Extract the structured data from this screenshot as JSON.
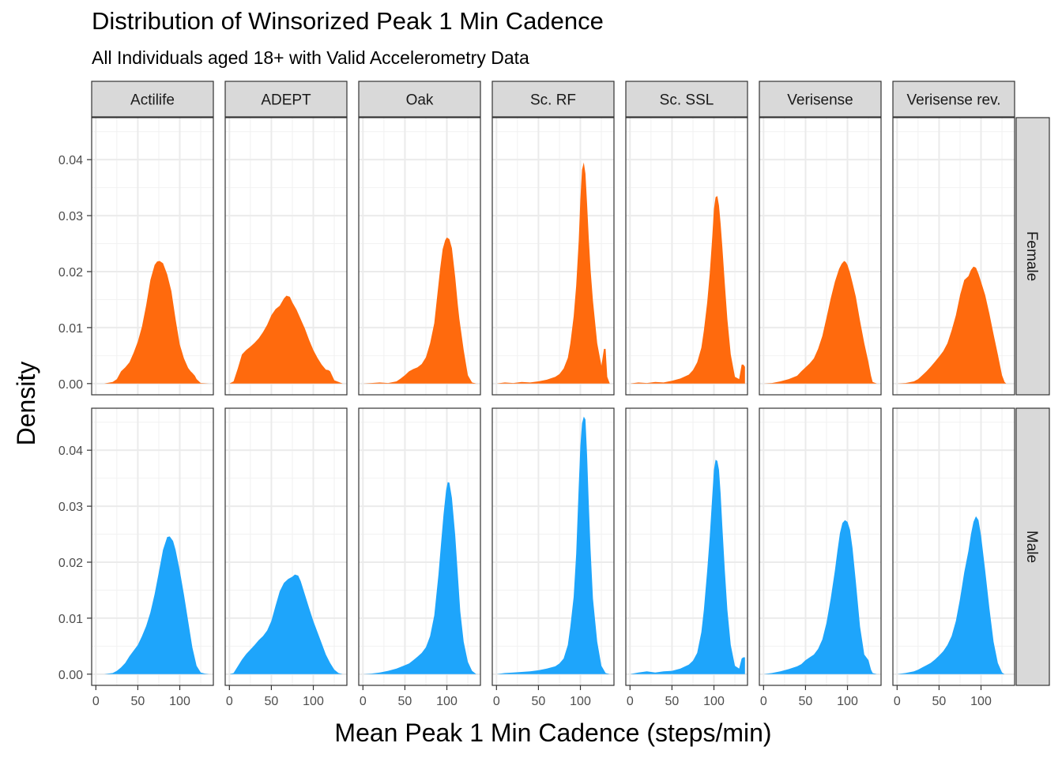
{
  "chart_data": {
    "type": "area",
    "kind": "faceted density plot",
    "title": "Distribution of Winsorized Peak 1 Min Cadence",
    "subtitle": "All Individuals aged 18+ with Valid Accelerometry Data",
    "xlabel": "Mean Peak 1 Min Cadence (steps/min)",
    "ylabel": "Density",
    "xlim": [
      -5,
      140
    ],
    "ylim": [
      -0.002,
      0.0475
    ],
    "x_ticks": [
      0,
      50,
      100
    ],
    "x_tick_labels": [
      "0",
      "50",
      "100"
    ],
    "y_ticks": [
      0,
      0.01,
      0.02,
      0.03,
      0.04
    ],
    "y_tick_labels": [
      "0.00",
      "0.01",
      "0.02",
      "0.03",
      "0.04"
    ],
    "grid": true,
    "legend": "none",
    "colors": {
      "Female": "#ff6a0d",
      "Male": "#1ea5fb"
    },
    "columns": [
      "Actilife",
      "ADEPT",
      "Oak",
      "Sc. RF",
      "Sc. SSL",
      "Verisense",
      "Verisense rev."
    ],
    "rows": [
      "Female",
      "Male"
    ],
    "panels": [
      {
        "row": "Female",
        "column": "Actilife",
        "x": [
          0,
          10,
          20,
          25,
          30,
          35,
          40,
          45,
          50,
          55,
          60,
          65,
          70,
          73,
          76,
          80,
          85,
          90,
          95,
          100,
          105,
          110,
          113,
          115,
          118,
          120,
          125,
          135
        ],
        "y": [
          0,
          0,
          0.0003,
          0.0008,
          0.0022,
          0.0029,
          0.0038,
          0.0055,
          0.0075,
          0.0102,
          0.014,
          0.0185,
          0.0212,
          0.0218,
          0.0219,
          0.0215,
          0.0195,
          0.0165,
          0.0115,
          0.007,
          0.0045,
          0.0028,
          0.0022,
          0.0019,
          0.0014,
          0.0008,
          0.0001,
          0
        ]
      },
      {
        "row": "Female",
        "column": "ADEPT",
        "x": [
          0,
          5,
          10,
          15,
          20,
          25,
          30,
          35,
          40,
          45,
          50,
          55,
          60,
          65,
          68,
          72,
          75,
          80,
          85,
          90,
          95,
          100,
          105,
          110,
          115,
          118,
          120,
          125,
          135
        ],
        "y": [
          0,
          0.0004,
          0.0027,
          0.0052,
          0.006,
          0.0066,
          0.0073,
          0.0081,
          0.0092,
          0.0105,
          0.0122,
          0.0133,
          0.0139,
          0.0152,
          0.0157,
          0.0155,
          0.0145,
          0.0132,
          0.0115,
          0.0098,
          0.0078,
          0.006,
          0.0046,
          0.0034,
          0.0025,
          0.0024,
          0.0022,
          0.0006,
          0
        ]
      },
      {
        "row": "Female",
        "column": "Oak",
        "x": [
          0,
          10,
          20,
          30,
          40,
          45,
          50,
          55,
          60,
          65,
          70,
          75,
          80,
          85,
          88,
          92,
          95,
          98,
          100,
          103,
          106,
          110,
          113,
          115,
          120,
          125,
          130,
          135
        ],
        "y": [
          0,
          0.0001,
          0.0002,
          0.0001,
          0.0004,
          0.0009,
          0.0015,
          0.0022,
          0.0026,
          0.0029,
          0.0035,
          0.0047,
          0.0072,
          0.0108,
          0.015,
          0.0205,
          0.024,
          0.0256,
          0.0261,
          0.0258,
          0.0242,
          0.019,
          0.0142,
          0.0115,
          0.006,
          0.0015,
          0.0002,
          0
        ]
      },
      {
        "row": "Female",
        "column": "Sc. RF",
        "x": [
          0,
          10,
          20,
          30,
          40,
          50,
          60,
          70,
          75,
          80,
          85,
          88,
          92,
          95,
          98,
          100,
          102,
          104,
          106,
          108,
          110,
          112,
          115,
          120,
          125,
          128,
          130,
          132,
          135
        ],
        "y": [
          0,
          0.0002,
          0.0001,
          0.0003,
          0.0002,
          0.0004,
          0.0007,
          0.0012,
          0.0017,
          0.0027,
          0.0046,
          0.0072,
          0.012,
          0.0175,
          0.0255,
          0.033,
          0.0382,
          0.0395,
          0.0375,
          0.032,
          0.026,
          0.0205,
          0.0148,
          0.0072,
          0.0032,
          0.0062,
          0.0062,
          0.0012,
          0
        ]
      },
      {
        "row": "Female",
        "column": "Sc. SSL",
        "x": [
          0,
          10,
          20,
          30,
          40,
          50,
          60,
          70,
          75,
          80,
          85,
          88,
          92,
          95,
          98,
          100,
          102,
          104,
          106,
          108,
          110,
          113,
          116,
          120,
          125,
          130,
          133,
          135,
          137
        ],
        "y": [
          0,
          0.0002,
          0.0001,
          0.0003,
          0.0002,
          0.0005,
          0.0009,
          0.0016,
          0.0024,
          0.0038,
          0.0064,
          0.0095,
          0.0145,
          0.0196,
          0.0262,
          0.0312,
          0.0333,
          0.0335,
          0.0318,
          0.0285,
          0.0245,
          0.0178,
          0.0115,
          0.0052,
          0.0012,
          0.0008,
          0.0034,
          0.0034,
          0.003
        ]
      },
      {
        "row": "Female",
        "column": "Verisense",
        "x": [
          0,
          10,
          20,
          30,
          40,
          45,
          50,
          55,
          60,
          65,
          70,
          75,
          80,
          85,
          90,
          93,
          96,
          98,
          100,
          103,
          106,
          110,
          115,
          120,
          125,
          128,
          130,
          135
        ],
        "y": [
          0,
          0.0001,
          0.0004,
          0.0008,
          0.0014,
          0.0022,
          0.0029,
          0.0036,
          0.0045,
          0.0062,
          0.0085,
          0.0118,
          0.0152,
          0.0182,
          0.0205,
          0.0214,
          0.0219,
          0.0217,
          0.0212,
          0.0198,
          0.018,
          0.0155,
          0.0112,
          0.0072,
          0.0038,
          0.0014,
          0.0003,
          0
        ]
      },
      {
        "row": "Female",
        "column": "Verisense rev.",
        "x": [
          0,
          10,
          20,
          25,
          30,
          35,
          40,
          45,
          50,
          55,
          60,
          65,
          70,
          75,
          80,
          85,
          88,
          91,
          94,
          97,
          100,
          105,
          110,
          115,
          120,
          125,
          128,
          130,
          135
        ],
        "y": [
          0,
          0.0001,
          0.0004,
          0.0008,
          0.0015,
          0.0022,
          0.003,
          0.0039,
          0.0048,
          0.0058,
          0.0072,
          0.0095,
          0.0122,
          0.0158,
          0.0185,
          0.0192,
          0.0203,
          0.0209,
          0.0207,
          0.0196,
          0.0182,
          0.0158,
          0.0125,
          0.0088,
          0.0052,
          0.0015,
          0.0003,
          0,
          0
        ]
      },
      {
        "row": "Male",
        "column": "Actilife",
        "x": [
          0,
          10,
          20,
          25,
          30,
          35,
          40,
          45,
          50,
          55,
          60,
          65,
          70,
          75,
          80,
          85,
          88,
          92,
          95,
          100,
          105,
          110,
          115,
          120,
          125,
          130,
          135
        ],
        "y": [
          0,
          0,
          0.0002,
          0.0006,
          0.0012,
          0.002,
          0.0032,
          0.0042,
          0.0052,
          0.0068,
          0.0086,
          0.011,
          0.0143,
          0.0182,
          0.0222,
          0.0245,
          0.0246,
          0.0238,
          0.0222,
          0.0185,
          0.0142,
          0.0095,
          0.0048,
          0.0015,
          0.0003,
          0.0001,
          0
        ]
      },
      {
        "row": "Male",
        "column": "ADEPT",
        "x": [
          0,
          5,
          10,
          15,
          20,
          25,
          30,
          35,
          40,
          45,
          50,
          55,
          60,
          65,
          70,
          75,
          78,
          82,
          85,
          90,
          95,
          100,
          105,
          110,
          115,
          120,
          125,
          130,
          135
        ],
        "y": [
          0,
          0.0002,
          0.0014,
          0.0026,
          0.0036,
          0.0044,
          0.0052,
          0.0061,
          0.0068,
          0.0078,
          0.0095,
          0.0122,
          0.0148,
          0.0163,
          0.017,
          0.0174,
          0.0178,
          0.0176,
          0.0166,
          0.0142,
          0.0118,
          0.0095,
          0.0075,
          0.0055,
          0.0035,
          0.002,
          0.0008,
          0.0002,
          0
        ]
      },
      {
        "row": "Male",
        "column": "Oak",
        "x": [
          0,
          10,
          20,
          30,
          40,
          45,
          50,
          55,
          60,
          65,
          70,
          75,
          80,
          85,
          90,
          93,
          96,
          99,
          101,
          103,
          106,
          110,
          113,
          116,
          120,
          125,
          130,
          135
        ],
        "y": [
          0,
          0.0001,
          0.0003,
          0.0006,
          0.001,
          0.0013,
          0.0016,
          0.0019,
          0.0025,
          0.0031,
          0.0038,
          0.0048,
          0.0068,
          0.0105,
          0.0178,
          0.0232,
          0.0285,
          0.0328,
          0.0343,
          0.0342,
          0.0315,
          0.0248,
          0.018,
          0.0112,
          0.0058,
          0.0022,
          0.0006,
          0
        ]
      },
      {
        "row": "Male",
        "column": "Sc. RF",
        "x": [
          0,
          10,
          20,
          30,
          40,
          50,
          60,
          70,
          75,
          80,
          85,
          88,
          92,
          95,
          98,
          100,
          102,
          104,
          106,
          108,
          110,
          112,
          115,
          120,
          125,
          130,
          135
        ],
        "y": [
          0,
          0.0002,
          0.0003,
          0.0004,
          0.0005,
          0.0007,
          0.001,
          0.0014,
          0.0019,
          0.0028,
          0.0052,
          0.0085,
          0.0138,
          0.0215,
          0.0335,
          0.0408,
          0.0448,
          0.046,
          0.0455,
          0.039,
          0.0305,
          0.0225,
          0.0135,
          0.0058,
          0.0015,
          0.0002,
          0
        ]
      },
      {
        "row": "Male",
        "column": "Sc. SSL",
        "x": [
          0,
          10,
          20,
          30,
          40,
          50,
          60,
          70,
          75,
          80,
          85,
          88,
          92,
          95,
          98,
          100,
          102,
          104,
          106,
          108,
          110,
          113,
          116,
          120,
          125,
          130,
          133,
          135,
          137
        ],
        "y": [
          0,
          0.0003,
          0.0005,
          0.0003,
          0.0005,
          0.0006,
          0.001,
          0.0017,
          0.0024,
          0.0038,
          0.0075,
          0.0115,
          0.0185,
          0.0245,
          0.0318,
          0.0365,
          0.0383,
          0.0381,
          0.0365,
          0.0322,
          0.0265,
          0.0185,
          0.0115,
          0.0052,
          0.0015,
          0.001,
          0.0028,
          0.003,
          0.003
        ]
      },
      {
        "row": "Male",
        "column": "Verisense",
        "x": [
          0,
          10,
          20,
          30,
          40,
          45,
          50,
          55,
          60,
          65,
          70,
          75,
          80,
          85,
          88,
          91,
          94,
          97,
          100,
          103,
          106,
          110,
          115,
          120,
          125,
          128,
          130,
          135
        ],
        "y": [
          0,
          0.0002,
          0.0005,
          0.0009,
          0.0014,
          0.0018,
          0.0025,
          0.003,
          0.0035,
          0.0045,
          0.0062,
          0.0092,
          0.0135,
          0.0185,
          0.022,
          0.0252,
          0.027,
          0.0275,
          0.0272,
          0.0258,
          0.0225,
          0.0165,
          0.0085,
          0.0035,
          0.0025,
          0.0008,
          0.0002,
          0
        ]
      },
      {
        "row": "Male",
        "column": "Verisense rev.",
        "x": [
          0,
          10,
          20,
          25,
          30,
          35,
          40,
          45,
          50,
          55,
          60,
          65,
          70,
          75,
          80,
          85,
          88,
          91,
          94,
          97,
          100,
          105,
          110,
          115,
          120,
          125,
          128,
          130,
          135
        ],
        "y": [
          0,
          0.0002,
          0.0005,
          0.0008,
          0.0012,
          0.0016,
          0.002,
          0.0026,
          0.0033,
          0.0041,
          0.0052,
          0.0068,
          0.0095,
          0.0135,
          0.0182,
          0.022,
          0.025,
          0.0272,
          0.0282,
          0.0275,
          0.0248,
          0.0185,
          0.0118,
          0.0058,
          0.002,
          0.0003,
          0,
          0,
          0
        ]
      }
    ]
  }
}
